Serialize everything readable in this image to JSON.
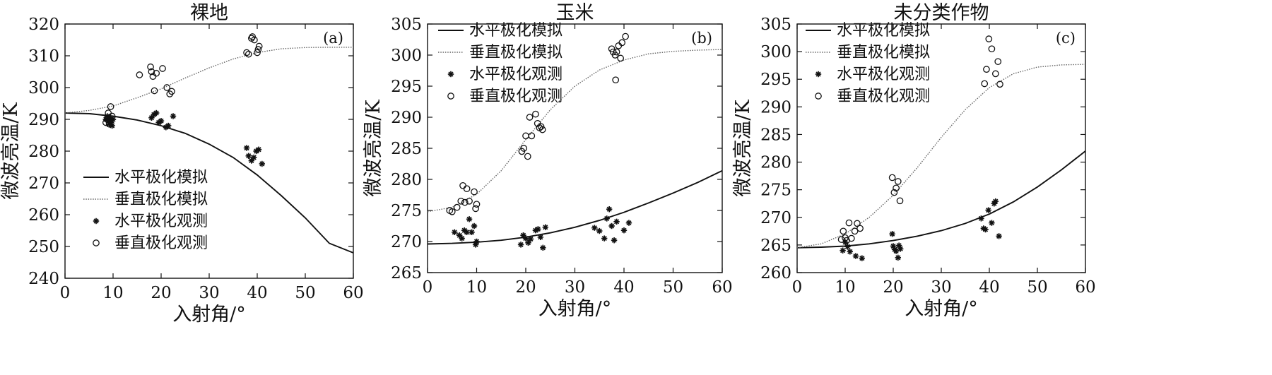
{
  "figure": {
    "width": 1800,
    "height": 531
  },
  "legend_labels": {
    "h_sim": "水平极化模拟",
    "v_sim": "垂直极化模拟",
    "h_obs": "水平极化观测",
    "v_obs": "垂直极化观测"
  },
  "chart_data": [
    {
      "type": "line+scatter",
      "panel": "(a)",
      "title": "裸地",
      "xlabel": "入射角/°",
      "ylabel": "微波亮温/K",
      "xlim": [
        0,
        60
      ],
      "ylim": [
        240,
        320
      ],
      "xticks": [
        0,
        10,
        20,
        30,
        40,
        50,
        60
      ],
      "yticks": [
        240,
        250,
        260,
        270,
        280,
        290,
        300,
        310,
        320
      ],
      "legend_position": "lower-left",
      "series": [
        {
          "name": "水平极化模拟",
          "kind": "line",
          "style": "solid",
          "x": [
            0,
            5,
            10,
            15,
            20,
            25,
            30,
            35,
            40,
            45,
            50,
            55,
            60
          ],
          "y": [
            292,
            291.8,
            291,
            289.8,
            288,
            285.6,
            282.2,
            278,
            272.5,
            266,
            259,
            251,
            248
          ]
        },
        {
          "name": "垂直极化模拟",
          "kind": "line",
          "style": "dotted",
          "x": [
            0,
            5,
            10,
            15,
            20,
            25,
            30,
            35,
            40,
            45,
            50,
            55,
            60
          ],
          "y": [
            292,
            292.8,
            294.2,
            296.8,
            299.6,
            303,
            306.2,
            309,
            311,
            312.2,
            312.6,
            312.7,
            312.7
          ]
        },
        {
          "name": "水平极化观测",
          "kind": "scatter",
          "marker": "star",
          "x": [
            8.5,
            8.8,
            9,
            9.2,
            9.4,
            9.6,
            9.8,
            10,
            18,
            18.5,
            19,
            19.5,
            20,
            21,
            21.5,
            22.5,
            37.8,
            38.2,
            38.8,
            39.3,
            39.8,
            40.3,
            41
          ],
          "y": [
            290,
            291,
            289.5,
            288.5,
            290.5,
            289,
            288,
            290,
            290.5,
            291.5,
            292,
            289,
            289.5,
            287.5,
            288,
            291,
            281,
            278.5,
            277,
            278,
            280,
            280.5,
            276
          ]
        },
        {
          "name": "垂直极化观测",
          "kind": "scatter",
          "marker": "circle",
          "x": [
            8.5,
            8.8,
            9,
            9.2,
            9.5,
            9.8,
            15.5,
            17.8,
            18,
            18.3,
            18.6,
            19,
            20.3,
            21.2,
            21.8,
            22.2,
            37.8,
            38.2,
            38.8,
            39,
            39.4,
            40,
            40.2,
            40.4
          ],
          "y": [
            289,
            290,
            292,
            288.5,
            294,
            291,
            304,
            306.5,
            305,
            303.5,
            299,
            304.5,
            306,
            300,
            298,
            298.8,
            311,
            310.5,
            315.5,
            316,
            315,
            311,
            312,
            313
          ]
        }
      ]
    },
    {
      "type": "line+scatter",
      "panel": "(b)",
      "title": "玉米",
      "xlabel": "入射角/°",
      "ylabel": "微波亮温/K",
      "xlim": [
        0,
        60
      ],
      "ylim": [
        265,
        305
      ],
      "xticks": [
        0,
        10,
        20,
        30,
        40,
        50,
        60
      ],
      "yticks": [
        265,
        270,
        275,
        280,
        285,
        290,
        295,
        300,
        305
      ],
      "legend_position": "top-left",
      "series": [
        {
          "name": "水平极化模拟",
          "kind": "line",
          "style": "solid",
          "x": [
            0,
            5,
            10,
            15,
            20,
            25,
            30,
            35,
            40,
            45,
            50,
            55,
            60
          ],
          "y": [
            269.6,
            269.7,
            269.9,
            270.2,
            270.7,
            271.4,
            272.3,
            273.4,
            274.7,
            276.2,
            277.8,
            279.5,
            281.4
          ]
        },
        {
          "name": "垂直极化模拟",
          "kind": "line",
          "style": "dotted",
          "x": [
            0,
            5,
            10,
            15,
            20,
            25,
            30,
            35,
            40,
            45,
            50,
            55,
            60
          ],
          "y": [
            274.8,
            275.5,
            277.6,
            281.4,
            286.4,
            291.2,
            295,
            297.6,
            299.2,
            300.2,
            300.6,
            300.8,
            300.9
          ]
        },
        {
          "name": "水平极化观测",
          "kind": "scatter",
          "marker": "star",
          "x": [
            5.5,
            6.5,
            7,
            7.5,
            8,
            8.5,
            9,
            9.5,
            9.8,
            10,
            19,
            19.5,
            20,
            20.5,
            21,
            22,
            22.5,
            23,
            23.5,
            24,
            34,
            35,
            36,
            36.5,
            37,
            37.5,
            38,
            38.5,
            40,
            41
          ],
          "y": [
            271.5,
            271,
            270.5,
            271.8,
            271.5,
            273.6,
            271.5,
            272.5,
            269.5,
            270,
            269.5,
            271,
            270.5,
            269.8,
            270.4,
            271.8,
            272,
            270.7,
            269,
            272.3,
            272.2,
            271.7,
            270.5,
            273.7,
            275.2,
            272.5,
            270.2,
            273.2,
            271.8,
            273
          ]
        },
        {
          "name": "垂直极化观测",
          "kind": "scatter",
          "marker": "circle",
          "x": [
            4.5,
            5,
            6,
            6.8,
            7.2,
            7.6,
            8,
            8.5,
            9.5,
            9.8,
            10,
            19.2,
            19.6,
            20,
            20.4,
            20.8,
            21.2,
            22,
            22.4,
            22.8,
            23.1,
            23.4,
            37.5,
            37.8,
            38.2,
            38.5,
            38.9,
            39.3,
            39.6,
            40.3,
            38.3
          ],
          "y": [
            275,
            274.8,
            275.5,
            276.5,
            279,
            276.3,
            278.5,
            276.5,
            278,
            275.3,
            276,
            284.5,
            285,
            287,
            283.7,
            290,
            287,
            290.5,
            289,
            288.3,
            288.5,
            288,
            301,
            300.5,
            300,
            300.5,
            301.5,
            299.5,
            302,
            303,
            296
          ]
        }
      ]
    },
    {
      "type": "line+scatter",
      "panel": "(c)",
      "title": "未分类作物",
      "xlabel": "入射角/°",
      "ylabel": "微波亮温/K",
      "xlim": [
        0,
        60
      ],
      "ylim": [
        260,
        305
      ],
      "xticks": [
        0,
        10,
        20,
        30,
        40,
        50,
        60
      ],
      "yticks": [
        260,
        265,
        270,
        275,
        280,
        285,
        290,
        295,
        300,
        305
      ],
      "legend_position": "top-left",
      "series": [
        {
          "name": "水平极化模拟",
          "kind": "line",
          "style": "solid",
          "x": [
            0,
            5,
            10,
            15,
            20,
            25,
            30,
            35,
            40,
            45,
            50,
            55,
            60
          ],
          "y": [
            264.5,
            264.6,
            264.8,
            265.2,
            265.8,
            266.6,
            267.6,
            268.9,
            270.6,
            272.8,
            275.5,
            278.6,
            282
          ]
        },
        {
          "name": "垂直极化模拟",
          "kind": "line",
          "style": "dotted",
          "x": [
            0,
            5,
            10,
            15,
            20,
            25,
            30,
            35,
            40,
            45,
            50,
            55,
            60
          ],
          "y": [
            264.5,
            265.2,
            267,
            270,
            274,
            279,
            284.5,
            289.5,
            293.5,
            296,
            297.2,
            297.6,
            297.7
          ]
        },
        {
          "name": "水平极化观测",
          "kind": "scatter",
          "marker": "star",
          "x": [
            9.5,
            10,
            10.5,
            11,
            12.2,
            13.5,
            19.8,
            20,
            20.3,
            20.6,
            21,
            21.2,
            21.5,
            38.3,
            38.8,
            39.2,
            39.8,
            40.5,
            41,
            41.3,
            42
          ],
          "y": [
            264,
            265.5,
            264.7,
            263.8,
            263,
            262.6,
            267,
            264.8,
            264.2,
            263.9,
            262.7,
            264.9,
            264.3,
            269.8,
            268,
            267.8,
            271.3,
            269,
            272.5,
            272.9,
            266.6
          ]
        },
        {
          "name": "垂直极化观测",
          "kind": "scatter",
          "marker": "circle",
          "x": [
            9.2,
            9.6,
            10,
            10.3,
            10.8,
            11.3,
            12,
            12.5,
            13.1,
            19.8,
            20.2,
            20.6,
            21,
            21.4,
            39,
            39.4,
            39.9,
            40.5,
            41.3,
            41.8,
            42.2
          ],
          "y": [
            266,
            267.5,
            266.3,
            265.8,
            269,
            266.2,
            267.5,
            268.9,
            268,
            277.2,
            274.5,
            275.3,
            276.5,
            273,
            294.2,
            296.8,
            302.3,
            300.5,
            296,
            298.2,
            294.1
          ]
        }
      ]
    }
  ]
}
